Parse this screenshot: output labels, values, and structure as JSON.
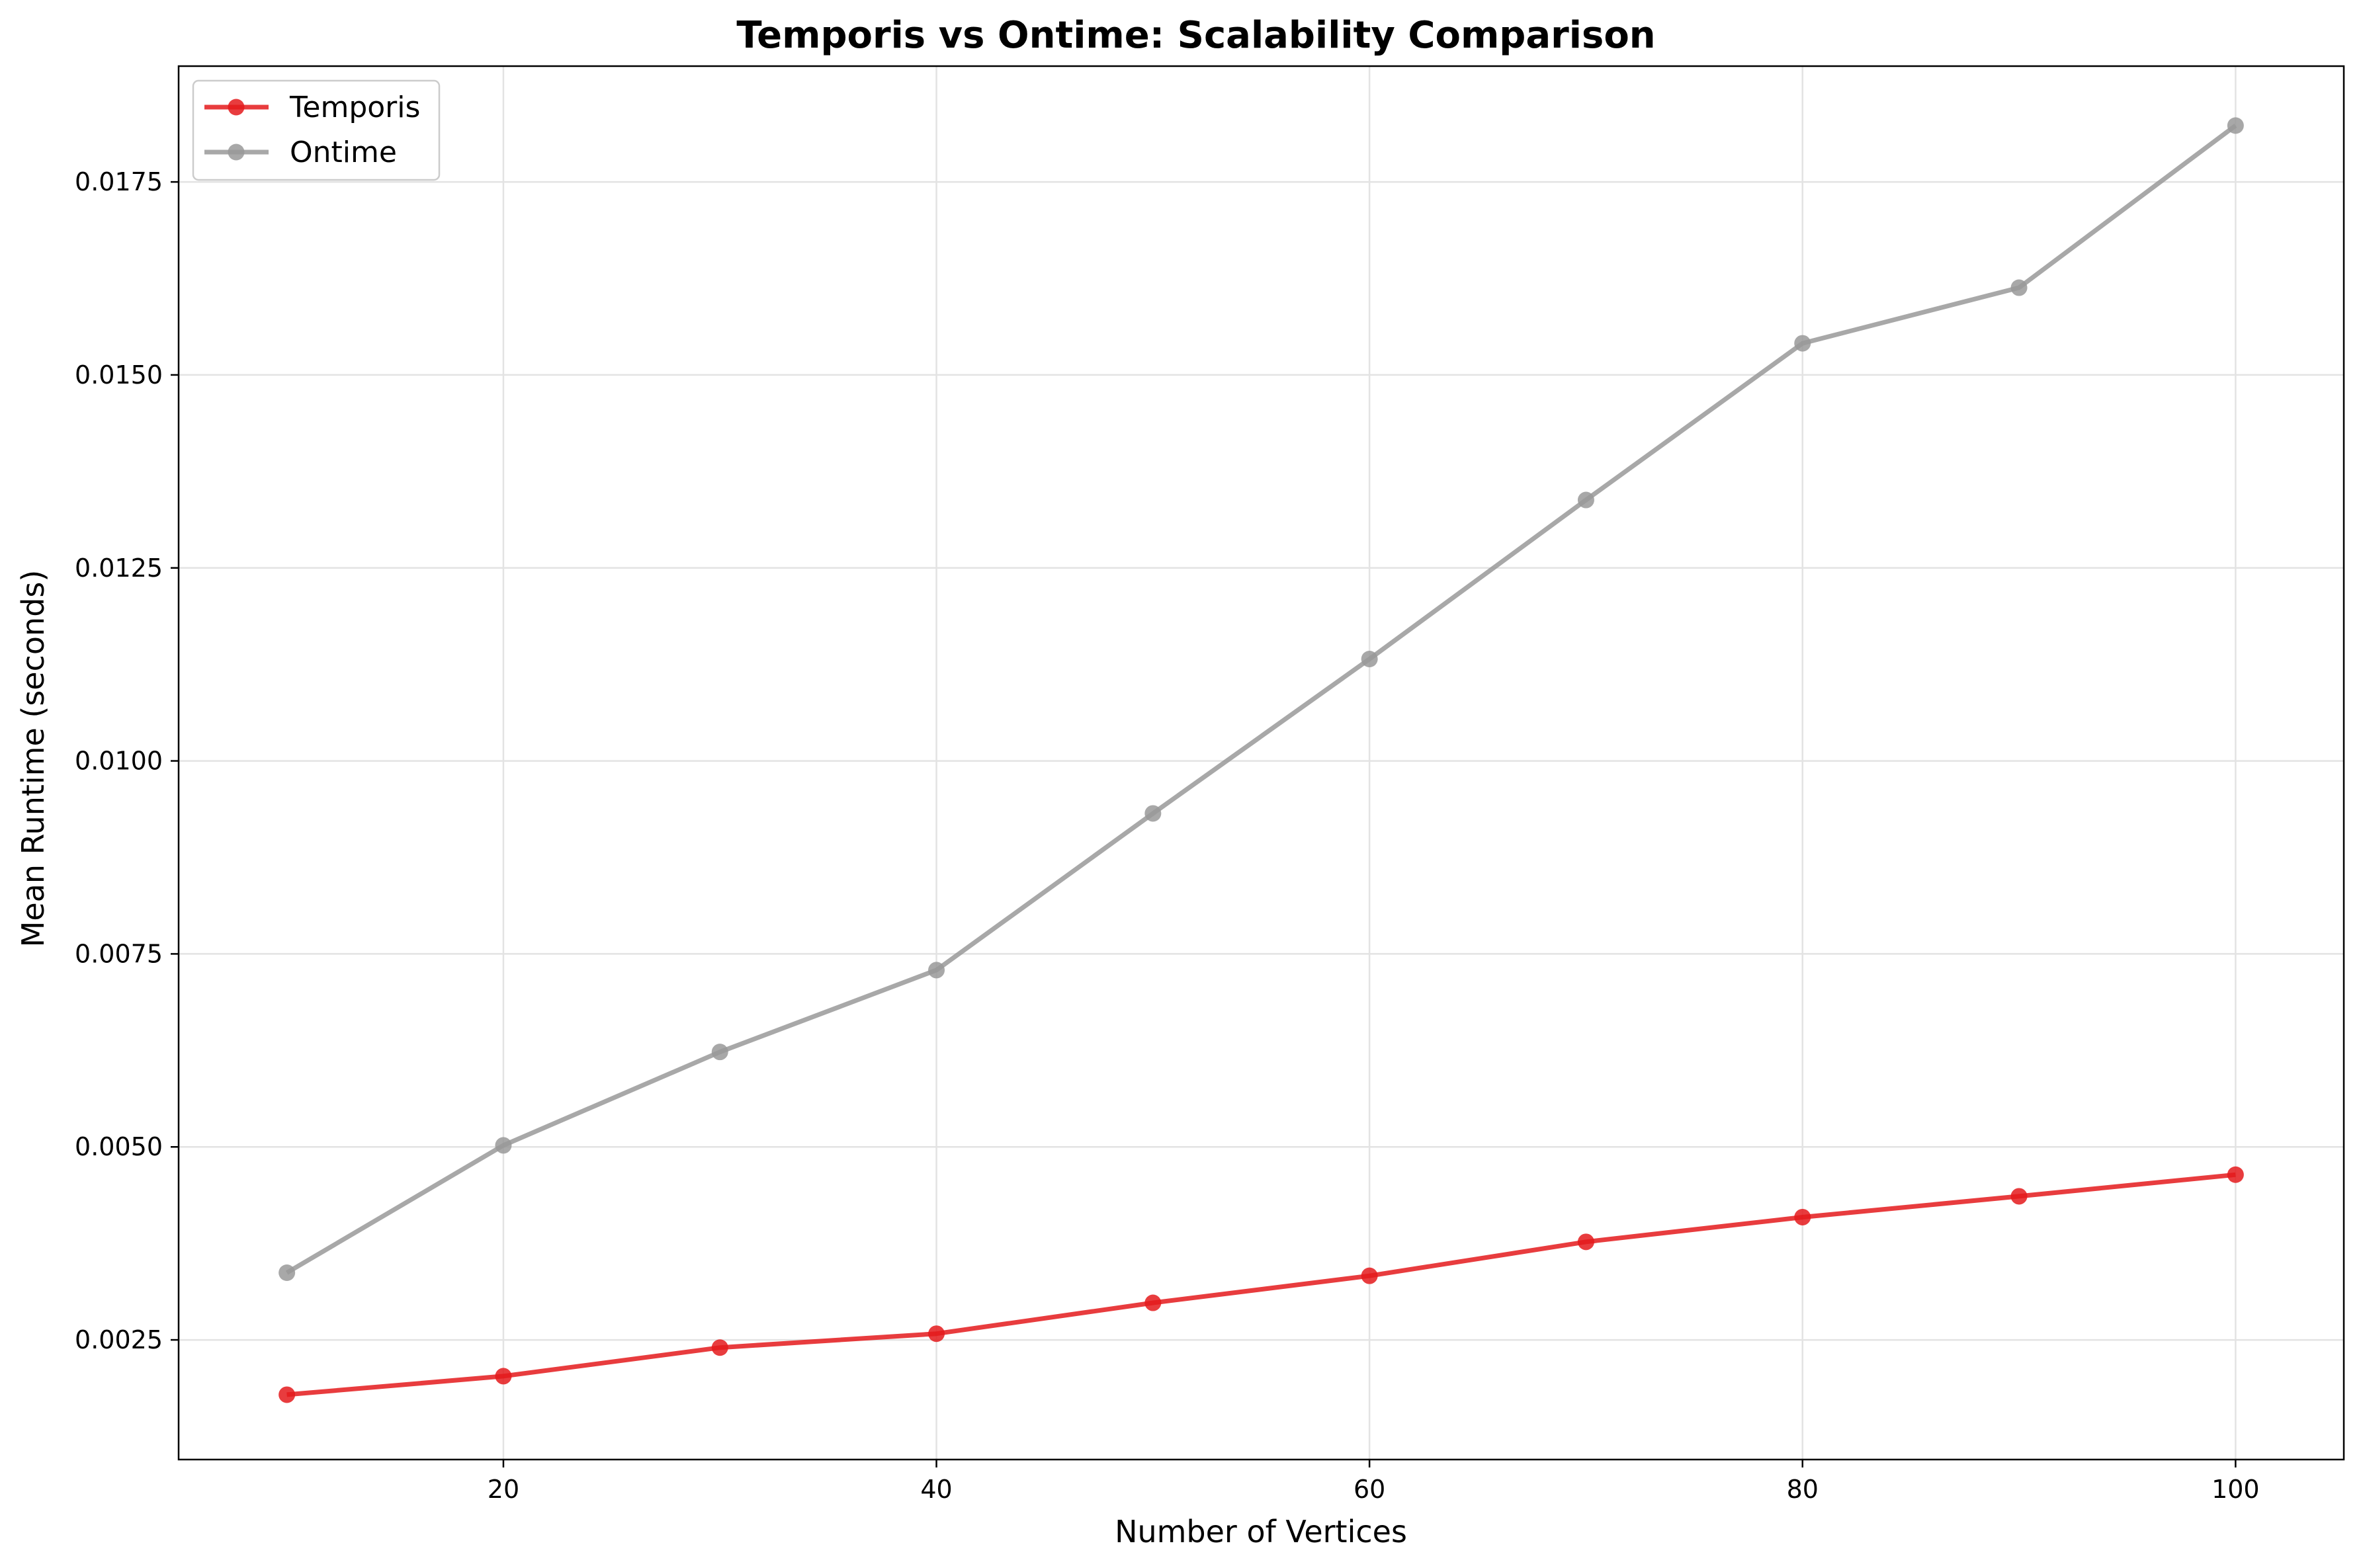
{
  "chart_data": {
    "type": "line",
    "title": "Temporis vs Ontime: Scalability Comparison",
    "xlabel": "Number of Vertices",
    "ylabel": "Mean Runtime (seconds)",
    "xlim": [
      5,
      105
    ],
    "ylim": [
      0.00095,
      0.019
    ],
    "x_ticks": [
      20,
      40,
      60,
      80,
      100
    ],
    "x_tick_labels": [
      "20",
      "40",
      "60",
      "80",
      "100"
    ],
    "y_ticks": [
      0.0025,
      0.005,
      0.0075,
      0.01,
      0.0125,
      0.015,
      0.0175
    ],
    "y_tick_labels": [
      "0.0025",
      "0.0050",
      "0.0075",
      "0.0100",
      "0.0125",
      "0.0150",
      "0.0175"
    ],
    "grid": true,
    "legend_position": "top-left",
    "x": [
      10,
      20,
      30,
      40,
      50,
      60,
      70,
      80,
      90,
      100
    ],
    "series": [
      {
        "name": "Temporis",
        "color": "#e41a1c",
        "values": [
          0.00179,
          0.00203,
          0.0024,
          0.00258,
          0.00298,
          0.00333,
          0.00377,
          0.00409,
          0.00436,
          0.00464
        ]
      },
      {
        "name": "Ontime",
        "color": "#999999",
        "values": [
          0.00337,
          0.00502,
          0.00623,
          0.00729,
          0.00932,
          0.01132,
          0.01338,
          0.01541,
          0.01613,
          0.01823
        ]
      }
    ]
  }
}
